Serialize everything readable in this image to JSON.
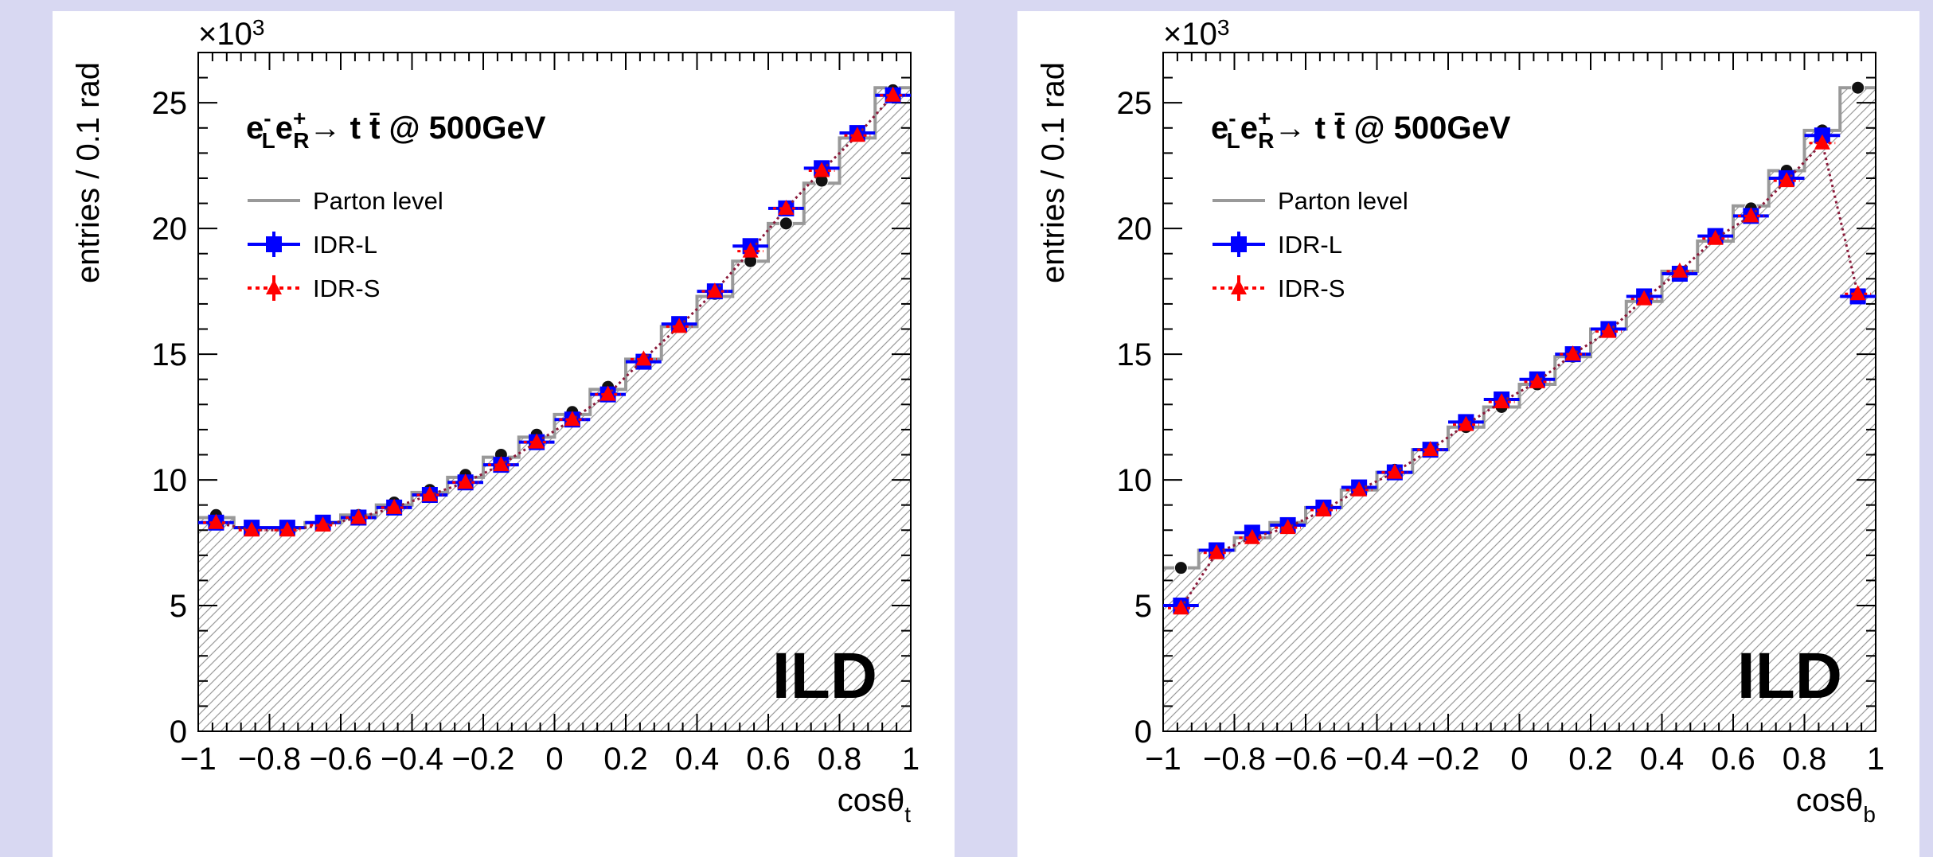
{
  "chart_data": [
    {
      "type": "line",
      "process_label": {
        "main": "e",
        "sub1": "L",
        "sup1": "-",
        "main2": "e",
        "sub2": "R",
        "sup2": "+",
        "arrow": "→",
        "final": "t t̄ @ 500GeV"
      },
      "xlabel": "cosθ",
      "xlabel_sub": "t",
      "ylabel": "entries / 0.1 rad",
      "y_exponent": "×10",
      "y_exponent_power": "3",
      "xlim": [
        -1,
        1
      ],
      "ylim": [
        0,
        27
      ],
      "x_ticks": [
        -1,
        -0.8,
        -0.6,
        -0.4,
        -0.2,
        0,
        0.2,
        0.4,
        0.6,
        0.8,
        1
      ],
      "x_tick_labels": [
        "−1",
        "−0.8",
        "−0.6",
        "−0.4",
        "−0.2",
        "0",
        "0.2",
        "0.4",
        "0.6",
        "0.8",
        "1"
      ],
      "y_ticks": [
        0,
        5,
        10,
        15,
        20,
        25
      ],
      "y_tick_labels": [
        "0",
        "5",
        "10",
        "15",
        "20",
        "25"
      ],
      "watermark": "ILD",
      "bin_edges": [
        -1,
        -0.9,
        -0.8,
        -0.7,
        -0.6,
        -0.5,
        -0.4,
        -0.3,
        -0.2,
        -0.1,
        0,
        0.1,
        0.2,
        0.3,
        0.4,
        0.5,
        0.6,
        0.7,
        0.8,
        0.9,
        1
      ],
      "x": [
        -0.95,
        -0.85,
        -0.75,
        -0.65,
        -0.55,
        -0.45,
        -0.35,
        -0.25,
        -0.15,
        -0.05,
        0.05,
        0.15,
        0.25,
        0.35,
        0.45,
        0.55,
        0.65,
        0.75,
        0.85,
        0.95
      ],
      "series": [
        {
          "name": "Parton level",
          "style": "histogram",
          "color": "#999999",
          "values": [
            8.5,
            8.1,
            8.1,
            8.3,
            8.6,
            9.0,
            9.5,
            10.1,
            10.9,
            11.7,
            12.6,
            13.6,
            14.8,
            16.1,
            17.3,
            18.7,
            20.2,
            21.8,
            23.6,
            25.6
          ]
        },
        {
          "name": "",
          "style": "circle",
          "color": "#000000",
          "values": [
            8.6,
            8.1,
            8.1,
            8.3,
            8.6,
            9.1,
            9.6,
            10.2,
            11.0,
            11.8,
            12.7,
            13.7,
            14.8,
            16.1,
            17.4,
            18.7,
            20.2,
            21.9,
            23.7,
            25.5
          ]
        },
        {
          "name": "IDR-L",
          "style": "square",
          "color": "#0000ff",
          "values": [
            8.3,
            8.1,
            8.1,
            8.3,
            8.5,
            8.9,
            9.4,
            9.9,
            10.6,
            11.5,
            12.4,
            13.4,
            14.7,
            16.2,
            17.5,
            19.3,
            20.8,
            22.4,
            23.8,
            25.3
          ]
        },
        {
          "name": "IDR-S",
          "style": "triangle",
          "color": "#ff0000",
          "values": [
            8.3,
            8.0,
            8.0,
            8.2,
            8.5,
            8.9,
            9.4,
            9.9,
            10.6,
            11.5,
            12.4,
            13.4,
            14.8,
            16.1,
            17.5,
            19.1,
            20.8,
            22.3,
            23.7,
            25.3
          ]
        }
      ]
    },
    {
      "type": "line",
      "process_label": {
        "main": "e",
        "sub1": "L",
        "sup1": "-",
        "main2": "e",
        "sub2": "R",
        "sup2": "+",
        "arrow": "→",
        "final": "t t̄ @ 500GeV"
      },
      "xlabel": "cosθ",
      "xlabel_sub": "b",
      "ylabel": "entries / 0.1 rad",
      "y_exponent": "×10",
      "y_exponent_power": "3",
      "xlim": [
        -1,
        1
      ],
      "ylim": [
        0,
        27
      ],
      "x_ticks": [
        -1,
        -0.8,
        -0.6,
        -0.4,
        -0.2,
        0,
        0.2,
        0.4,
        0.6,
        0.8,
        1
      ],
      "x_tick_labels": [
        "−1",
        "−0.8",
        "−0.6",
        "−0.4",
        "−0.2",
        "0",
        "0.2",
        "0.4",
        "0.6",
        "0.8",
        "1"
      ],
      "y_ticks": [
        0,
        5,
        10,
        15,
        20,
        25
      ],
      "y_tick_labels": [
        "0",
        "5",
        "10",
        "15",
        "20",
        "25"
      ],
      "watermark": "ILD",
      "bin_edges": [
        -1,
        -0.9,
        -0.8,
        -0.7,
        -0.6,
        -0.5,
        -0.4,
        -0.3,
        -0.2,
        -0.1,
        0,
        0.1,
        0.2,
        0.3,
        0.4,
        0.5,
        0.6,
        0.7,
        0.8,
        0.9,
        1
      ],
      "x": [
        -0.95,
        -0.85,
        -0.75,
        -0.65,
        -0.55,
        -0.45,
        -0.35,
        -0.25,
        -0.15,
        -0.05,
        0.05,
        0.15,
        0.25,
        0.35,
        0.45,
        0.55,
        0.65,
        0.75,
        0.85,
        0.95
      ],
      "series": [
        {
          "name": "Parton level",
          "style": "histogram",
          "color": "#999999",
          "values": [
            6.5,
            7.2,
            7.7,
            8.3,
            8.9,
            9.6,
            10.3,
            11.2,
            12.1,
            12.9,
            13.8,
            14.9,
            16.0,
            17.1,
            18.3,
            19.5,
            20.9,
            22.3,
            23.9,
            25.6
          ]
        },
        {
          "name": "",
          "style": "circle",
          "color": "#000000",
          "values": [
            6.5,
            7.1,
            7.7,
            8.2,
            8.9,
            9.6,
            10.4,
            11.2,
            12.1,
            12.9,
            13.8,
            14.9,
            16.0,
            17.2,
            18.3,
            19.6,
            20.8,
            22.3,
            23.9,
            25.6
          ]
        },
        {
          "name": "IDR-L",
          "style": "square",
          "color": "#0000ff",
          "values": [
            5.0,
            7.2,
            7.9,
            8.2,
            8.9,
            9.7,
            10.3,
            11.2,
            12.3,
            13.2,
            14.0,
            15.0,
            16.0,
            17.3,
            18.2,
            19.7,
            20.5,
            22.0,
            23.7,
            17.3
          ]
        },
        {
          "name": "IDR-S",
          "style": "triangle",
          "color": "#ff0000",
          "values": [
            4.9,
            7.1,
            7.7,
            8.1,
            8.8,
            9.6,
            10.3,
            11.2,
            12.2,
            13.1,
            13.9,
            15.0,
            15.9,
            17.2,
            18.3,
            19.6,
            20.5,
            21.9,
            23.4,
            17.4
          ]
        }
      ]
    }
  ]
}
